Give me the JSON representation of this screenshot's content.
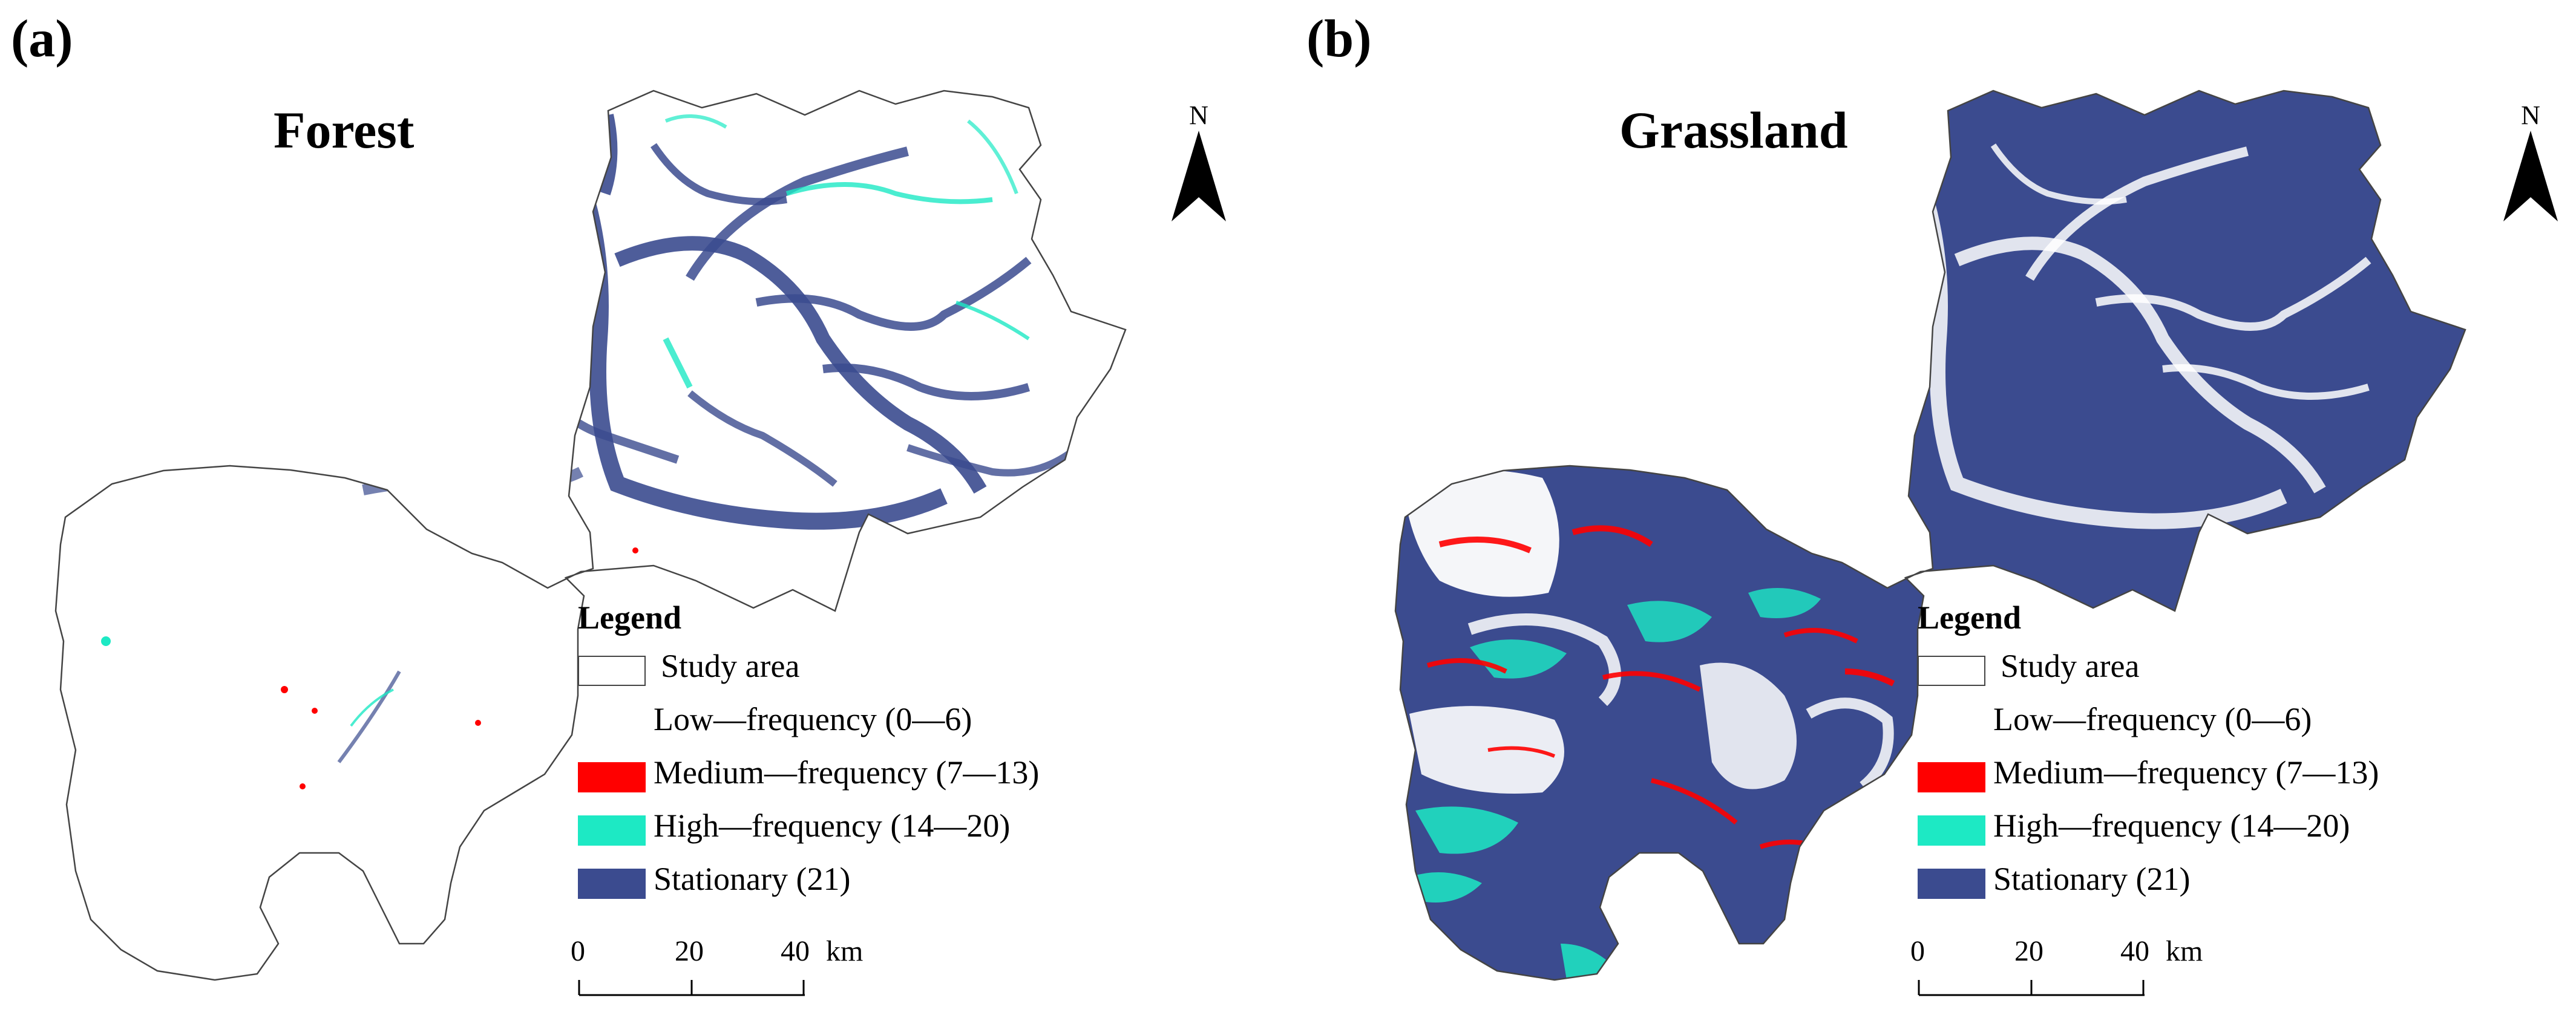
{
  "colors": {
    "low": "#ffffff",
    "medium": "#ff0000",
    "high": "#1de9c4",
    "stationary": "#3b4b8f",
    "outline": "#444444"
  },
  "panels": [
    {
      "letter": "(a)",
      "title": "Forest",
      "north_label": "N",
      "legend": {
        "title": "Legend",
        "items": [
          {
            "label": "Study area",
            "color": "#ffffff",
            "bordered": true
          },
          {
            "label": "Low—frequency (0—6)",
            "color": "#ffffff",
            "bordered": false
          },
          {
            "label": "Medium—frequency (7—13)",
            "color": "#ff0000",
            "bordered": false
          },
          {
            "label": "High—frequency (14—20)",
            "color": "#1de9c4",
            "bordered": false
          },
          {
            "label": "Stationary (21)",
            "color": "#3b4b8f",
            "bordered": false
          }
        ]
      },
      "scale": {
        "ticks": [
          "0",
          "20",
          "40"
        ],
        "unit": "km"
      }
    },
    {
      "letter": "(b)",
      "title": "Grassland",
      "north_label": "N",
      "legend": {
        "title": "Legend",
        "items": [
          {
            "label": "Study area",
            "color": "#ffffff",
            "bordered": true
          },
          {
            "label": "Low—frequency (0—6)",
            "color": "#ffffff",
            "bordered": false
          },
          {
            "label": "Medium—frequency (7—13)",
            "color": "#ff0000",
            "bordered": false
          },
          {
            "label": "High—frequency (14—20)",
            "color": "#1de9c4",
            "bordered": false
          },
          {
            "label": "Stationary (21)",
            "color": "#3b4b8f",
            "bordered": false
          }
        ]
      },
      "scale": {
        "ticks": [
          "0",
          "20",
          "40"
        ],
        "unit": "km"
      }
    }
  ]
}
